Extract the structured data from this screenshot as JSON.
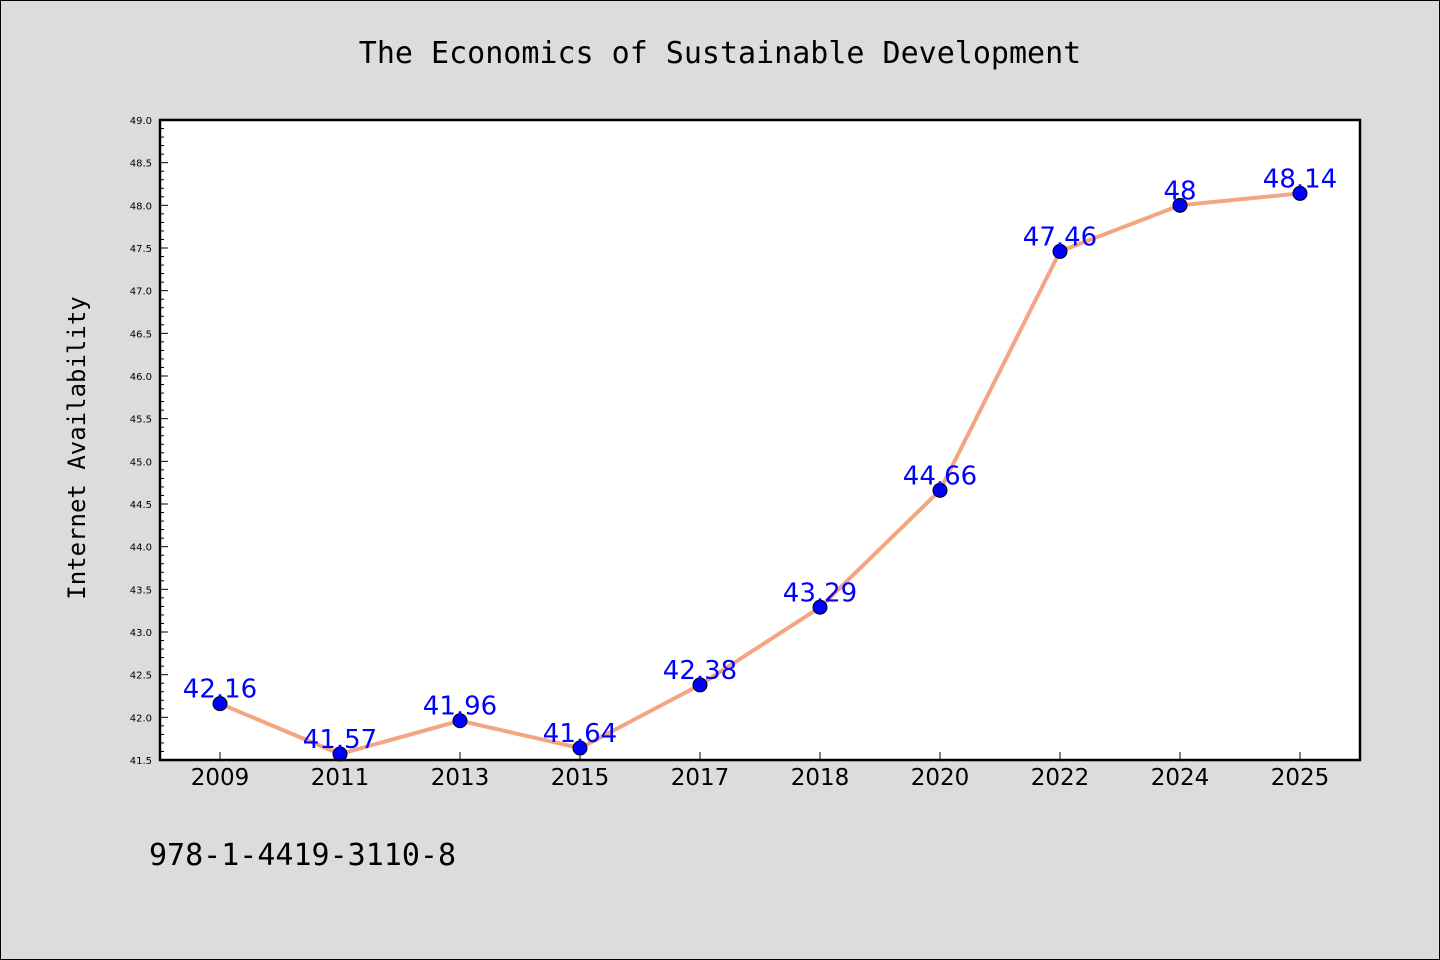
{
  "colors": {
    "background": "#dcdcdc",
    "plot_background": "#ffffff",
    "line": "#f4a582",
    "marker": "#0000ff",
    "data_label": "#0000ff"
  },
  "footer_text": "978-1-4419-3110-8",
  "chart_data": {
    "type": "line",
    "title": "The Economics of Sustainable Development",
    "xlabel": "",
    "ylabel": "Internet Availability",
    "categories": [
      "2009",
      "2011",
      "2013",
      "2015",
      "2017",
      "2018",
      "2020",
      "2022",
      "2024",
      "2025"
    ],
    "series": [
      {
        "values": [
          42.16,
          41.57,
          41.96,
          41.64,
          42.38,
          43.29,
          44.66,
          47.46,
          48,
          48.14
        ],
        "data_labels": [
          "42.16",
          "41.57",
          "41.96",
          "41.64",
          "42.38",
          "43.29",
          "44.66",
          "47.46",
          "48",
          "48.14"
        ]
      }
    ],
    "ylim": [
      41.5,
      49.0
    ],
    "yticks": [
      "41.5",
      "42.0",
      "42.5",
      "43.0",
      "43.5",
      "44.0",
      "44.5",
      "45.0",
      "45.5",
      "46.0",
      "46.5",
      "47.0",
      "47.5",
      "48.0",
      "48.5",
      "49.0"
    ],
    "grid": false,
    "legend": "none",
    "marker": "circle"
  }
}
